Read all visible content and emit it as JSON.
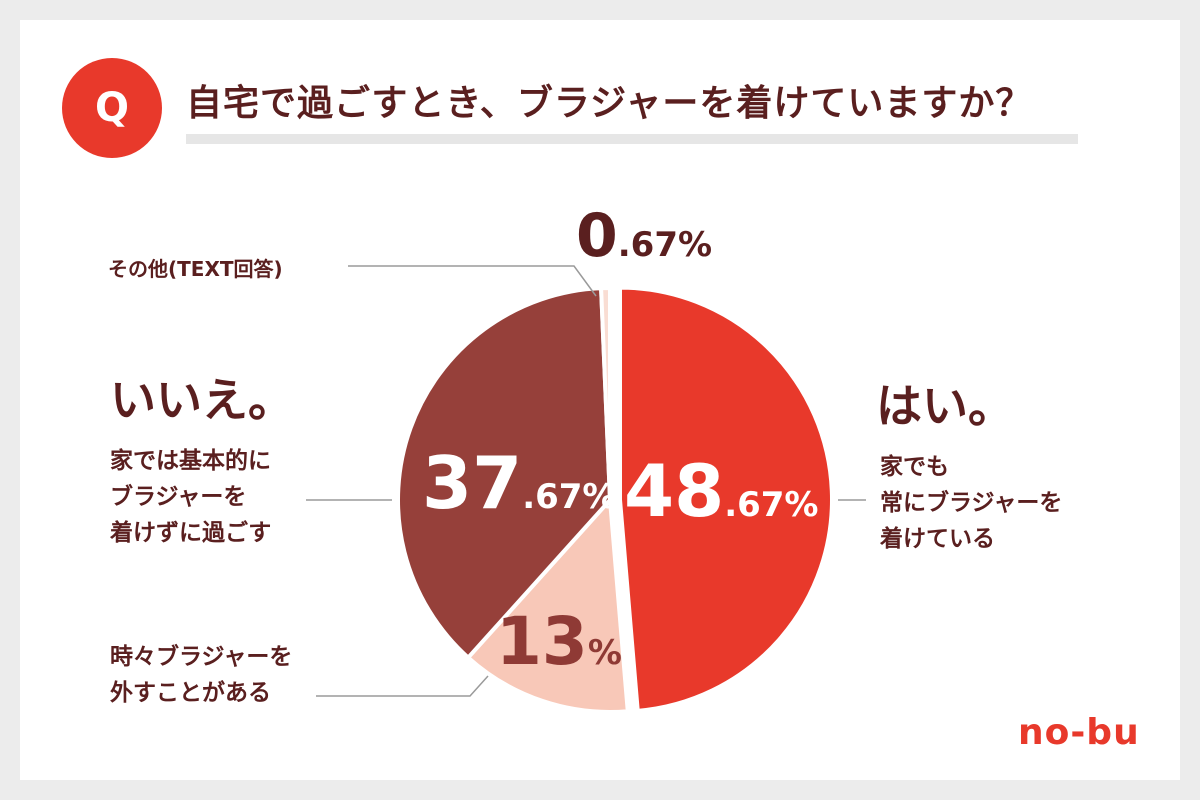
{
  "question": {
    "badge": "Q",
    "title": "自宅で過ごすとき、ブラジャーを着けていますか？"
  },
  "brand": "no-bu",
  "colors": {
    "yes": "#e8392b",
    "no": "#96403a",
    "sometimes": "#f8c8b8",
    "other": "#f9ddd3"
  },
  "chart_data": {
    "type": "pie",
    "unit": "%",
    "start_angle_deg": 0,
    "direction": "clockwise",
    "slices": [
      {
        "id": "yes",
        "value": 48.67,
        "int_part": "48",
        "dec_part": ".67%",
        "heading": "はい。",
        "description": [
          "家でも",
          "常にブラジャーを",
          "着けている"
        ]
      },
      {
        "id": "sometimes",
        "value": 13,
        "int_part": "13",
        "dec_part": "%",
        "heading": "",
        "description": [
          "時々ブラジャーを",
          "外すことがある"
        ]
      },
      {
        "id": "no",
        "value": 37.67,
        "int_part": "37",
        "dec_part": ".67%",
        "heading": "いいえ。",
        "description": [
          "家では基本的に",
          "ブラジャーを",
          "着けずに過ごす"
        ]
      },
      {
        "id": "other",
        "value": 0.67,
        "int_part": "0",
        "dec_part": ".67%",
        "heading": "",
        "description": [
          "その他(TEXT回答)"
        ]
      }
    ]
  }
}
